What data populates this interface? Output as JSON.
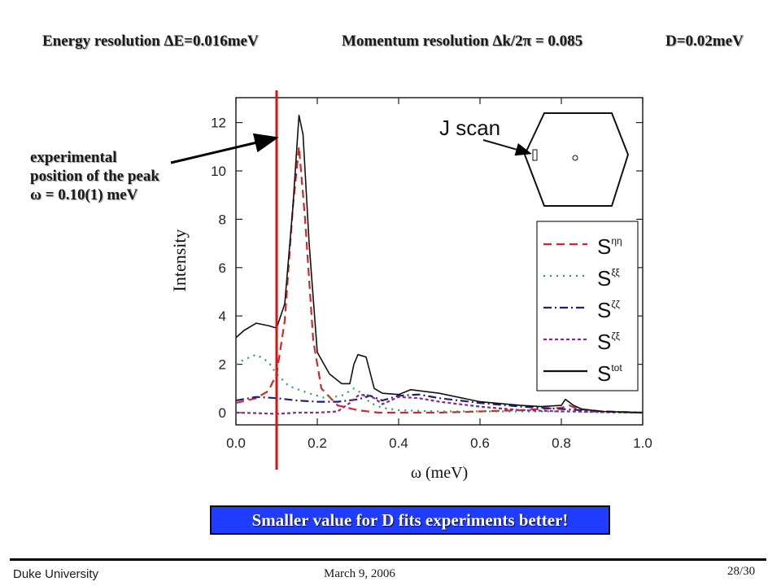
{
  "header": {
    "energy": "Energy resolution ΔE=0.016meV",
    "momentum": "Momentum resolution Δk/2π = 0.085",
    "d_value": "D=0.02meV"
  },
  "annotation": {
    "line1": "experimental",
    "line2": "position of the peak",
    "line3": "ω = 0.10(1) meV"
  },
  "callout": "Smaller value for D fits experiments better!",
  "footer": {
    "left": "Duke University",
    "middle": "March 9, 2006",
    "right": "28/30"
  },
  "chart_data": {
    "type": "line",
    "title": "",
    "xlabel": "ω (meV)",
    "ylabel": "Intensity",
    "xlim": [
      0.0,
      1.0
    ],
    "ylim": [
      -0.5,
      13
    ],
    "xticks": [
      0.0,
      0.2,
      0.4,
      0.6,
      0.8,
      1.0
    ],
    "xtick_labels": [
      "0.0",
      "0.2",
      "0.4",
      "0.6",
      "0.8",
      "1.0"
    ],
    "yticks": [
      0,
      2,
      4,
      6,
      8,
      10,
      12
    ],
    "ytick_labels": [
      "0",
      "2",
      "4",
      "6",
      "8",
      "10",
      "12"
    ],
    "inset_label": "J scan",
    "marker_line_x": 0.1,
    "legend_position": "right",
    "series": [
      {
        "name": "Sηη",
        "sup": "ηη",
        "color": "#d62728",
        "dash": "10,6",
        "x": [
          0.0,
          0.05,
          0.08,
          0.1,
          0.12,
          0.14,
          0.155,
          0.17,
          0.19,
          0.21,
          0.25,
          0.3,
          0.35,
          0.4,
          0.5,
          0.6,
          0.7,
          0.8,
          0.82,
          0.84,
          0.9,
          1.0
        ],
        "y": [
          0.4,
          0.6,
          0.9,
          1.6,
          3.8,
          8.5,
          11.0,
          8.0,
          3.0,
          1.0,
          0.3,
          0.1,
          0.0,
          0.0,
          0.0,
          0.05,
          0.1,
          0.2,
          0.3,
          0.15,
          0.05,
          0.0
        ]
      },
      {
        "name": "Sξξ",
        "sup": "ξξ",
        "color": "#17a85a",
        "dash": "2,6",
        "x": [
          0.0,
          0.02,
          0.05,
          0.08,
          0.1,
          0.13,
          0.18,
          0.22,
          0.26,
          0.29,
          0.31,
          0.33,
          0.36,
          0.4,
          0.5,
          0.6,
          0.7,
          0.8,
          0.85,
          0.9,
          1.0
        ],
        "y": [
          2.0,
          2.2,
          2.4,
          2.1,
          1.6,
          1.1,
          0.8,
          0.6,
          0.7,
          1.0,
          0.8,
          0.4,
          0.2,
          0.1,
          0.05,
          0.05,
          0.05,
          0.05,
          0.05,
          0.02,
          0.0
        ]
      },
      {
        "name": "Sζζ",
        "sup": "ζζ",
        "color": "#1e1e80",
        "dash": "10,4,2,4",
        "x": [
          0.0,
          0.05,
          0.1,
          0.15,
          0.2,
          0.25,
          0.3,
          0.33,
          0.36,
          0.4,
          0.45,
          0.5,
          0.6,
          0.7,
          0.8,
          0.9,
          1.0
        ],
        "y": [
          0.5,
          0.65,
          0.6,
          0.5,
          0.45,
          0.45,
          0.55,
          0.7,
          0.5,
          0.7,
          0.75,
          0.6,
          0.4,
          0.25,
          0.15,
          0.05,
          0.0
        ]
      },
      {
        "name": "Sζξ",
        "sup": "ζξ",
        "color": "#8a2a8a",
        "dash": "4,3",
        "x": [
          0.0,
          0.05,
          0.1,
          0.15,
          0.2,
          0.25,
          0.28,
          0.3,
          0.32,
          0.34,
          0.36,
          0.4,
          0.45,
          0.5,
          0.6,
          0.7,
          0.8,
          0.82,
          0.9,
          1.0
        ],
        "y": [
          0.0,
          -0.02,
          -0.05,
          0.0,
          0.0,
          0.05,
          0.4,
          0.7,
          0.75,
          0.6,
          0.35,
          0.65,
          0.6,
          0.45,
          0.25,
          0.1,
          0.05,
          0.05,
          0.02,
          0.0
        ]
      },
      {
        "name": "Stot",
        "sup": "tot",
        "color": "#111111",
        "dash": "",
        "x": [
          0.0,
          0.02,
          0.05,
          0.08,
          0.1,
          0.12,
          0.14,
          0.155,
          0.165,
          0.18,
          0.2,
          0.23,
          0.26,
          0.28,
          0.29,
          0.3,
          0.32,
          0.34,
          0.36,
          0.4,
          0.43,
          0.5,
          0.6,
          0.7,
          0.75,
          0.8,
          0.81,
          0.83,
          0.85,
          0.9,
          1.0
        ],
        "y": [
          3.1,
          3.4,
          3.7,
          3.6,
          3.5,
          4.5,
          8.5,
          12.3,
          11.5,
          7.0,
          2.5,
          1.6,
          1.2,
          1.2,
          2.0,
          2.4,
          2.3,
          1.0,
          0.8,
          0.75,
          0.95,
          0.8,
          0.45,
          0.3,
          0.25,
          0.3,
          0.55,
          0.3,
          0.15,
          0.05,
          0.0
        ]
      }
    ]
  }
}
